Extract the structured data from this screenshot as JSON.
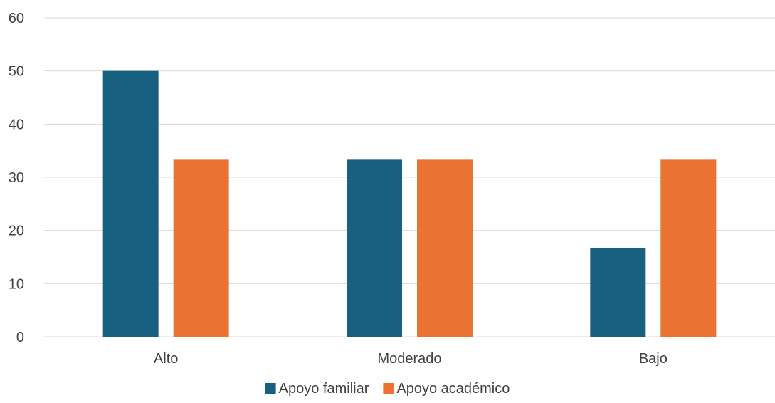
{
  "chart_data": {
    "type": "bar",
    "categories": [
      "Alto",
      "Moderado",
      "Bajo"
    ],
    "series": [
      {
        "name": "Apoyo familiar",
        "values": [
          50,
          33.3,
          16.7
        ],
        "color": "#17607f"
      },
      {
        "name": "Apoyo académico",
        "values": [
          33.3,
          33.3,
          33.3
        ],
        "color": "#ea7233"
      }
    ],
    "yticks": [
      "0",
      "10",
      "20",
      "30",
      "40",
      "50",
      "60"
    ],
    "ylim": [
      0,
      60
    ],
    "grid": true,
    "legend_position": "bottom"
  }
}
